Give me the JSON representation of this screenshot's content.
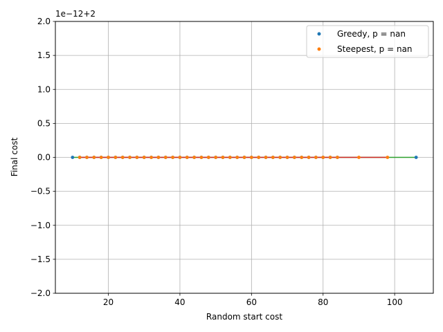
{
  "chart_data": {
    "type": "scatter",
    "xlabel": "Random start cost",
    "ylabel": "Final cost",
    "y_offset_label": "1e−12+2",
    "xlim": [
      5.2,
      110.8
    ],
    "ylim": [
      -2.0,
      2.0
    ],
    "xticks": [
      20,
      40,
      60,
      80,
      100
    ],
    "xtick_labels": [
      "20",
      "40",
      "60",
      "80",
      "100"
    ],
    "yticks": [
      -2.0,
      -1.5,
      -1.0,
      -0.5,
      0.0,
      0.5,
      1.0,
      1.5,
      2.0
    ],
    "ytick_labels": [
      "−2.0",
      "−1.5",
      "−1.0",
      "−0.5",
      "0.0",
      "0.5",
      "1.0",
      "1.5",
      "2.0"
    ],
    "grid": true,
    "legend_position": "top-right",
    "series": [
      {
        "name": "Greedy, p = nan",
        "color": "#1f77b4",
        "x": [
          10,
          12,
          14,
          16,
          18,
          20,
          22,
          24,
          26,
          28,
          30,
          32,
          34,
          36,
          38,
          40,
          42,
          44,
          46,
          48,
          50,
          52,
          54,
          56,
          58,
          60,
          62,
          64,
          66,
          68,
          70,
          72,
          74,
          76,
          78,
          80,
          82,
          84,
          106
        ],
        "y": [
          0,
          0,
          0,
          0,
          0,
          0,
          0,
          0,
          0,
          0,
          0,
          0,
          0,
          0,
          0,
          0,
          0,
          0,
          0,
          0,
          0,
          0,
          0,
          0,
          0,
          0,
          0,
          0,
          0,
          0,
          0,
          0,
          0,
          0,
          0,
          0,
          0,
          0,
          0
        ]
      },
      {
        "name": "Steepest, p = nan",
        "color": "#ff7f0e",
        "x": [
          12,
          14,
          16,
          18,
          20,
          22,
          24,
          26,
          28,
          30,
          32,
          34,
          36,
          38,
          40,
          42,
          44,
          46,
          48,
          50,
          52,
          54,
          56,
          58,
          60,
          62,
          64,
          66,
          68,
          70,
          72,
          74,
          76,
          78,
          80,
          82,
          84,
          90,
          98
        ],
        "y": [
          0,
          0,
          0,
          0,
          0,
          0,
          0,
          0,
          0,
          0,
          0,
          0,
          0,
          0,
          0,
          0,
          0,
          0,
          0,
          0,
          0,
          0,
          0,
          0,
          0,
          0,
          0,
          0,
          0,
          0,
          0,
          0,
          0,
          0,
          0,
          0,
          0,
          0,
          0
        ]
      }
    ],
    "fit_lines": [
      {
        "color": "#2ca02c",
        "x": [
          10,
          106
        ],
        "y": [
          0,
          0
        ]
      },
      {
        "color": "#d62728",
        "x": [
          12,
          98
        ],
        "y": [
          0,
          0
        ]
      }
    ]
  }
}
